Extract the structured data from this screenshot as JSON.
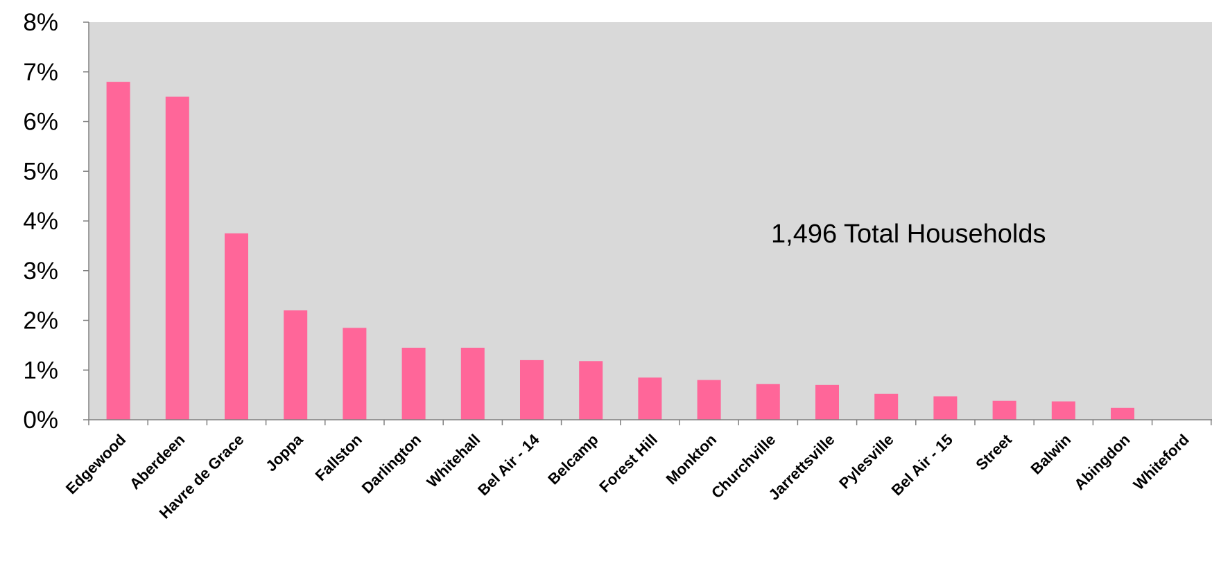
{
  "chart_data": {
    "type": "bar",
    "categories": [
      "Edgewood",
      "Aberdeen",
      "Havre de Grace",
      "Joppa",
      "Fallston",
      "Darlington",
      "Whitehall",
      "Bel Air - 14",
      "Belcamp",
      "Forest Hill",
      "Monkton",
      "Churchville",
      "Jarrettsville",
      "Pylesville",
      "Bel Air - 15",
      "Street",
      "Balwin",
      "Abingdon",
      "Whiteford"
    ],
    "values": [
      6.8,
      6.5,
      3.75,
      2.2,
      1.85,
      1.45,
      1.45,
      1.2,
      1.18,
      0.85,
      0.8,
      0.72,
      0.7,
      0.52,
      0.47,
      0.38,
      0.37,
      0.24,
      0
    ],
    "ylim": [
      0,
      8
    ],
    "yticks": [
      "0%",
      "1%",
      "2%",
      "3%",
      "4%",
      "5%",
      "6%",
      "7%",
      "8%"
    ],
    "annotation": "1,496 Total Households",
    "colors": {
      "bar": "#ff6699",
      "plot_background": "#d9d9d9"
    },
    "grid": false,
    "legend": "none"
  }
}
